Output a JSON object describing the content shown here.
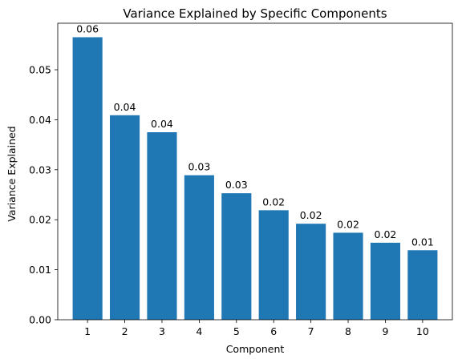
{
  "chart_data": {
    "type": "bar",
    "title": "Variance Explained by Specific Components",
    "xlabel": "Component",
    "ylabel": "Variance Explained",
    "categories": [
      "1",
      "2",
      "3",
      "4",
      "5",
      "6",
      "7",
      "8",
      "9",
      "10"
    ],
    "values": [
      0.0565,
      0.0409,
      0.0375,
      0.0289,
      0.0253,
      0.0219,
      0.0192,
      0.0174,
      0.0154,
      0.0139
    ],
    "data_labels": [
      "0.06",
      "0.04",
      "0.04",
      "0.03",
      "0.03",
      "0.02",
      "0.02",
      "0.02",
      "0.02",
      "0.01"
    ],
    "ylim": [
      0,
      0.0593
    ],
    "yticks": [
      0.0,
      0.01,
      0.02,
      0.03,
      0.04,
      0.05
    ],
    "ytick_labels": [
      "0.00",
      "0.01",
      "0.02",
      "0.03",
      "0.04",
      "0.05"
    ],
    "grid": false,
    "legend": "none",
    "bar_color": "#1f77b4"
  }
}
